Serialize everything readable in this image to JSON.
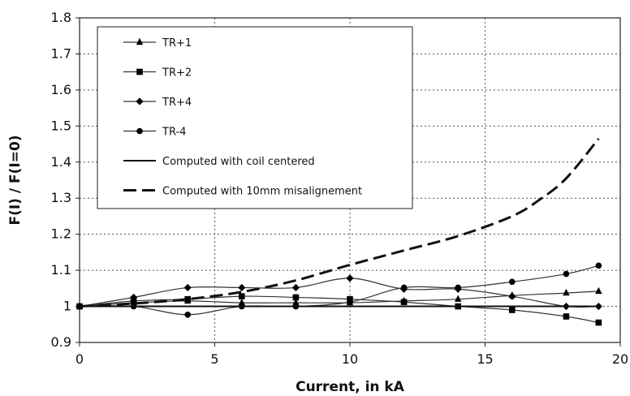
{
  "chart_data": {
    "type": "line",
    "title": "",
    "xlabel": "Current, in kA",
    "ylabel": "F(I) / F(I=0)",
    "xlim": [
      0,
      20
    ],
    "ylim": [
      0.9,
      1.8
    ],
    "x_ticks": [
      "0",
      "5",
      "10",
      "15",
      "20"
    ],
    "y_ticks": [
      "0.9",
      "1",
      "1.1",
      "1.2",
      "1.3",
      "1.4",
      "1.5",
      "1.6",
      "1.7",
      "1.8"
    ],
    "grid": true,
    "legend_position": "top-left",
    "series": [
      {
        "name": "TR+1",
        "marker": "triangle",
        "line": "solid",
        "color": "#333333",
        "x": [
          0,
          2,
          4,
          6,
          8,
          10,
          12,
          14,
          16,
          18,
          19.2
        ],
        "y": [
          1.0,
          1.01,
          1.015,
          1.01,
          1.01,
          1.01,
          1.015,
          1.02,
          1.03,
          1.037,
          1.042
        ]
      },
      {
        "name": "TR+2",
        "marker": "square",
        "line": "solid",
        "color": "#333333",
        "x": [
          0,
          2,
          4,
          6,
          8,
          10,
          12,
          14,
          16,
          18,
          19.2
        ],
        "y": [
          1.0,
          1.015,
          1.02,
          1.028,
          1.025,
          1.02,
          1.012,
          1.0,
          0.99,
          0.972,
          0.955
        ]
      },
      {
        "name": "TR+4",
        "marker": "diamond",
        "line": "solid",
        "color": "#333333",
        "x": [
          0,
          2,
          4,
          6,
          8,
          10,
          12,
          14,
          16,
          18,
          19.2
        ],
        "y": [
          1.0,
          1.025,
          1.052,
          1.052,
          1.052,
          1.078,
          1.048,
          1.048,
          1.028,
          1.0,
          1.0
        ]
      },
      {
        "name": "TR-4",
        "marker": "circle",
        "line": "solid",
        "color": "#333333",
        "x": [
          0,
          2,
          4,
          6,
          8,
          10,
          12,
          14,
          16,
          18,
          19.2
        ],
        "y": [
          1.0,
          1.0,
          0.977,
          1.0,
          1.0,
          1.012,
          1.052,
          1.052,
          1.068,
          1.09,
          1.113
        ]
      },
      {
        "name": "Computed with coil centered",
        "marker": "none",
        "line": "solid",
        "color": "#111111",
        "x": [
          0,
          19.2
        ],
        "y": [
          1.0,
          1.0
        ]
      },
      {
        "name": "Computed with 10mm misalignement",
        "marker": "none",
        "line": "dashed",
        "color": "#111111",
        "x": [
          0,
          2,
          4,
          6,
          8,
          10,
          12,
          14,
          16,
          17,
          18,
          19.2
        ],
        "y": [
          1.0,
          1.008,
          1.02,
          1.04,
          1.072,
          1.115,
          1.155,
          1.195,
          1.25,
          1.295,
          1.355,
          1.465
        ]
      }
    ]
  }
}
